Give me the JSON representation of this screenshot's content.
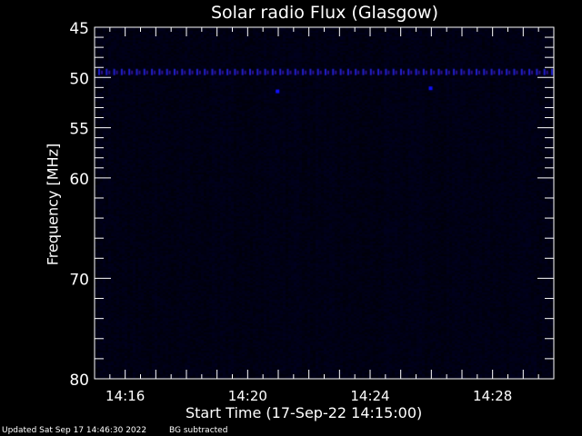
{
  "chart_data": {
    "type": "heatmap",
    "title": "Solar radio Flux (Glasgow)",
    "xlabel": "Start Time (17-Sep-22 14:15:00)",
    "ylabel": "Frequency [MHz]",
    "xlim": [
      "14:15:00",
      "14:30:00"
    ],
    "ylim": [
      45,
      80
    ],
    "y_inverted": true,
    "x_ticks": [
      "14:16",
      "14:20",
      "14:24",
      "14:28"
    ],
    "y_ticks": [
      45,
      50,
      55,
      60,
      70,
      80
    ],
    "interference_band_mhz": 49.5,
    "colors": {
      "background": "#000000",
      "low": "#00000c",
      "high": "#2a2aff"
    }
  },
  "footer": {
    "updated": "Updated Sat Sep 17 14:46:30 2022",
    "mode": "BG subtracted"
  }
}
